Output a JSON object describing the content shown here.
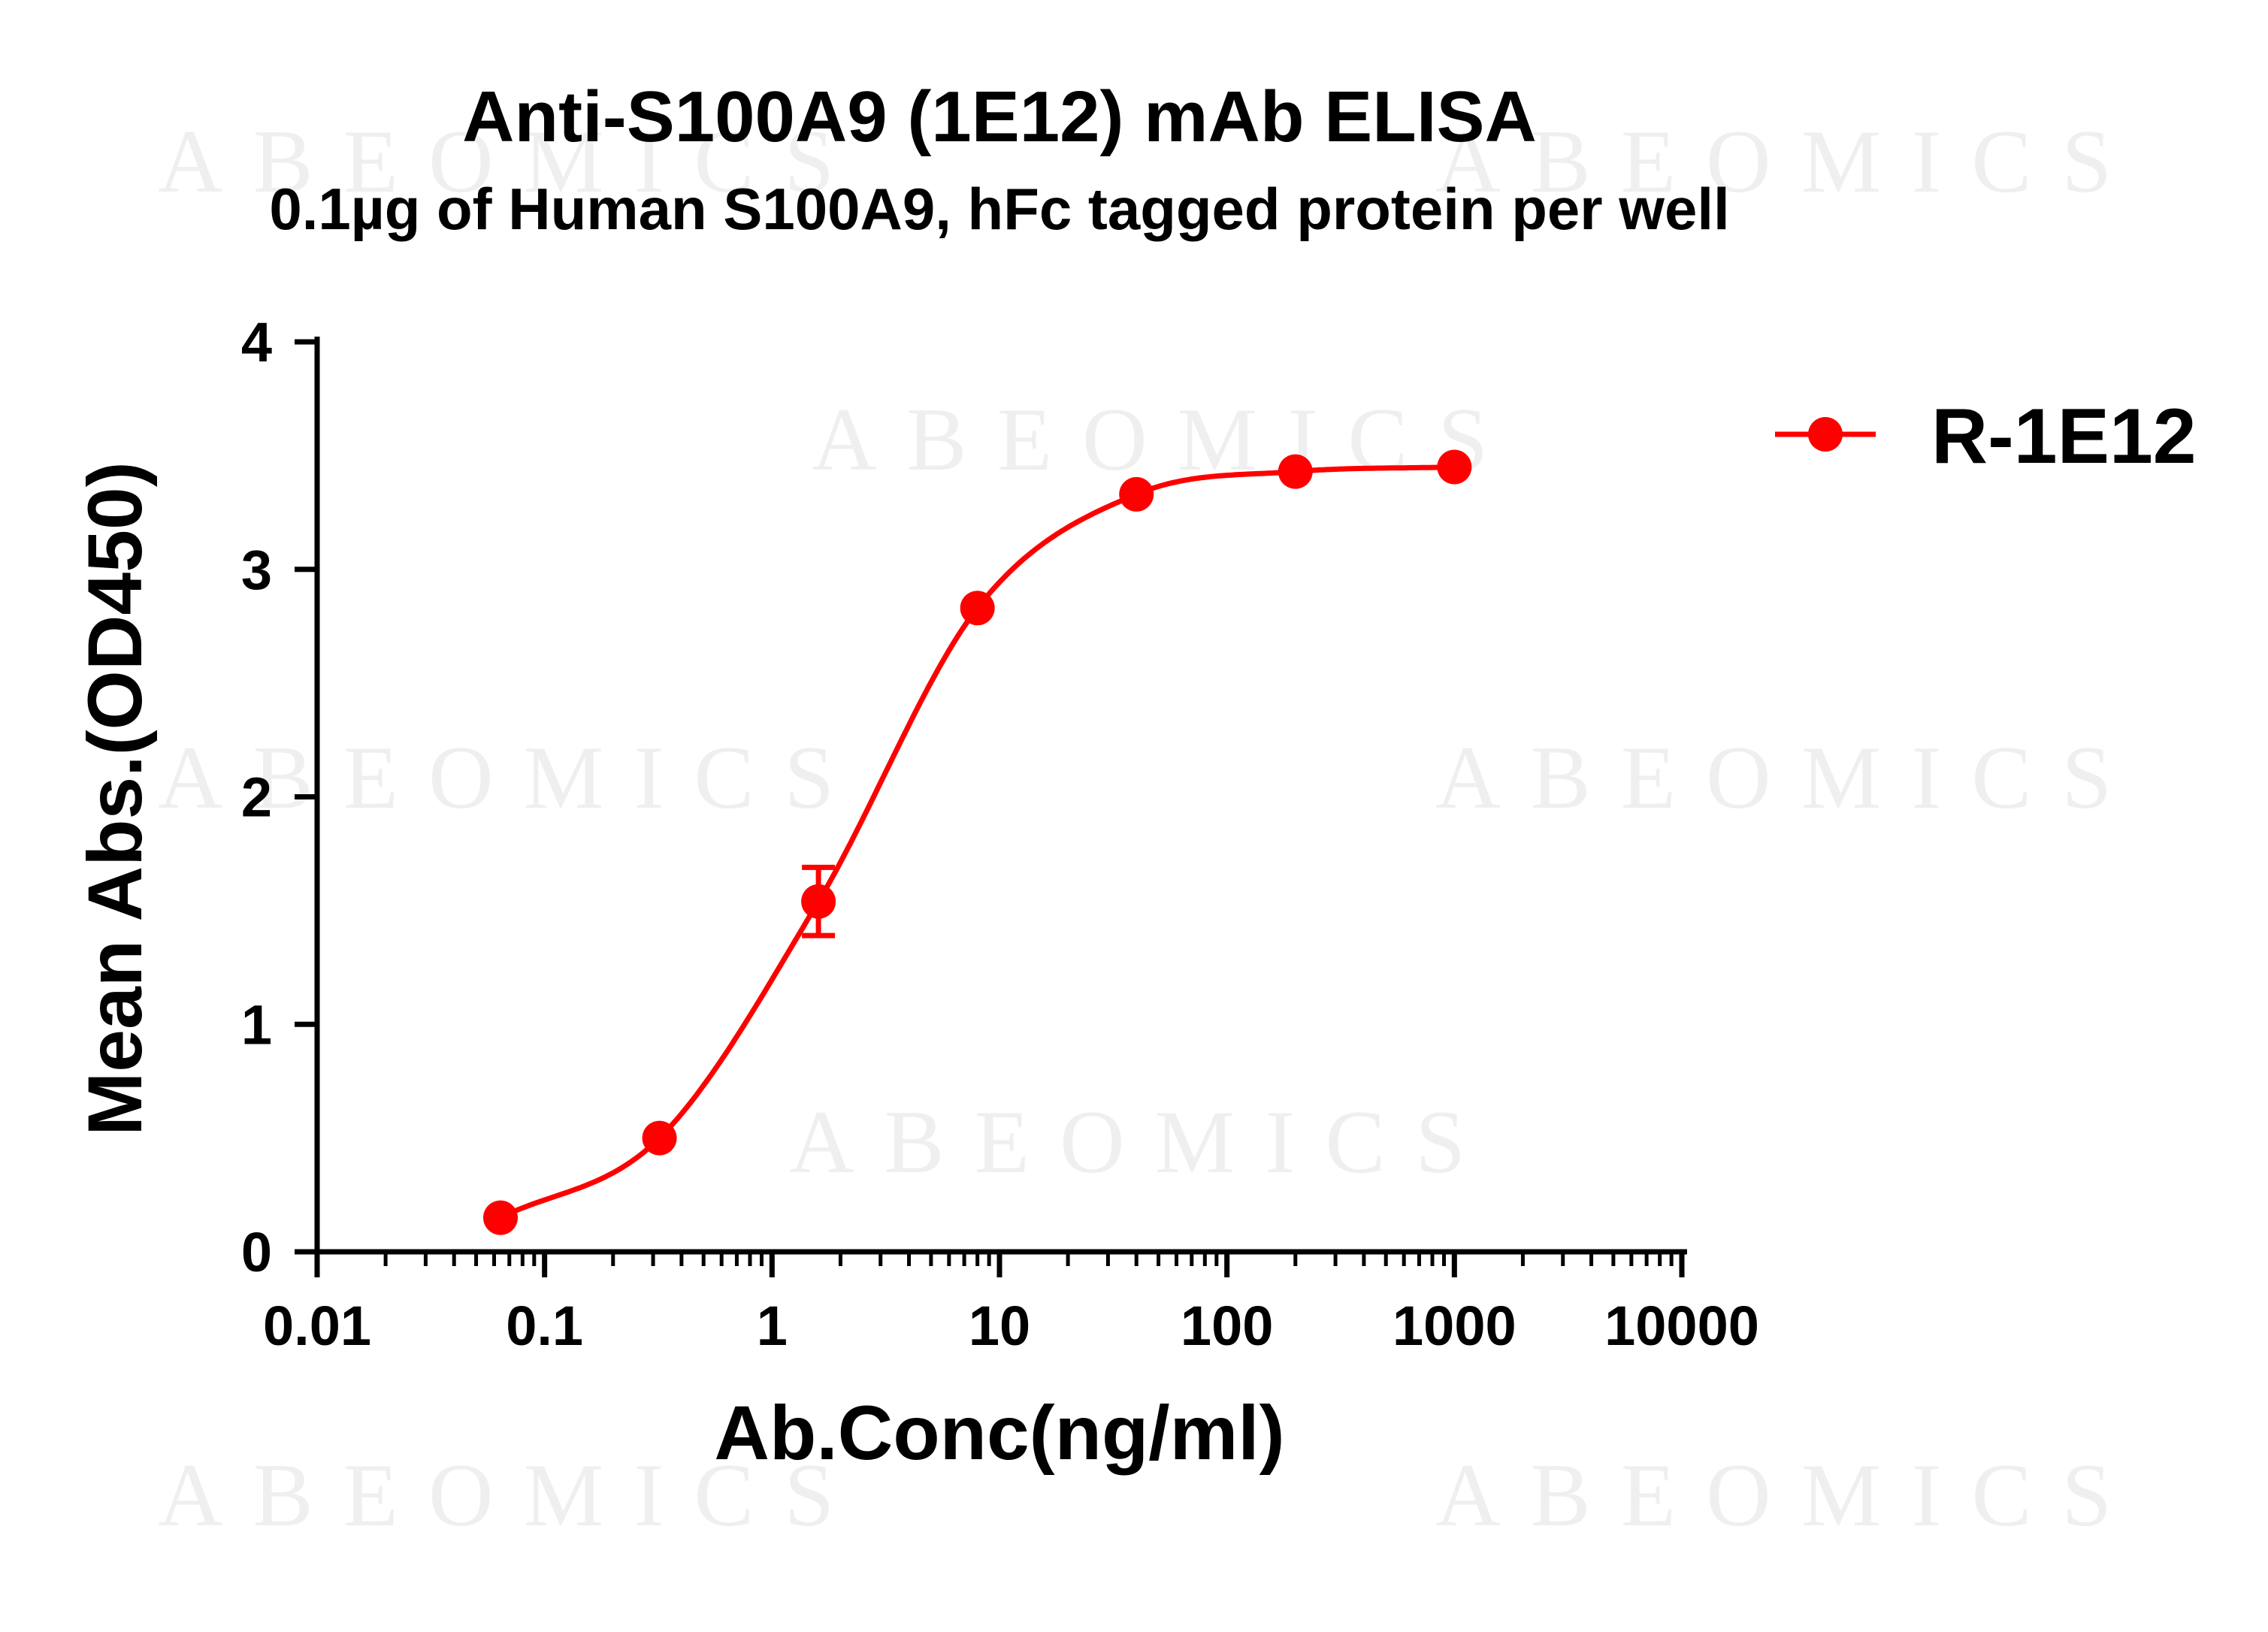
{
  "chart_data": {
    "type": "line",
    "title": "Anti-S100A9 (1E12) mAb ELISA",
    "subtitle": "0.1µg of Human S100A9, hFc tagged protein per well",
    "xlabel": "Ab.Conc(ng/ml)",
    "ylabel": "Mean Abs.(OD450)",
    "x_scale": "log",
    "xlim": [
      0.01,
      10000
    ],
    "ylim": [
      0,
      4
    ],
    "x_ticks": [
      0.01,
      0.1,
      1,
      10,
      100,
      1000,
      10000
    ],
    "x_tick_labels": [
      "0.01",
      "0.1",
      "1",
      "10",
      "100",
      "1000",
      "10000"
    ],
    "y_ticks": [
      0,
      1,
      2,
      3,
      4
    ],
    "y_tick_labels": [
      "0",
      "1",
      "2",
      "3",
      "4"
    ],
    "grid": false,
    "legend_position": "top-right",
    "watermark": "ABEOMICS",
    "series": [
      {
        "name": "R-1E12",
        "color": "#ff0000",
        "x": [
          0.064,
          0.32,
          1.6,
          8,
          40,
          200,
          1000
        ],
        "y": [
          0.15,
          0.5,
          1.54,
          2.83,
          3.33,
          3.43,
          3.45
        ],
        "error": [
          0,
          0,
          0.15,
          0,
          0,
          0,
          0
        ]
      }
    ]
  }
}
